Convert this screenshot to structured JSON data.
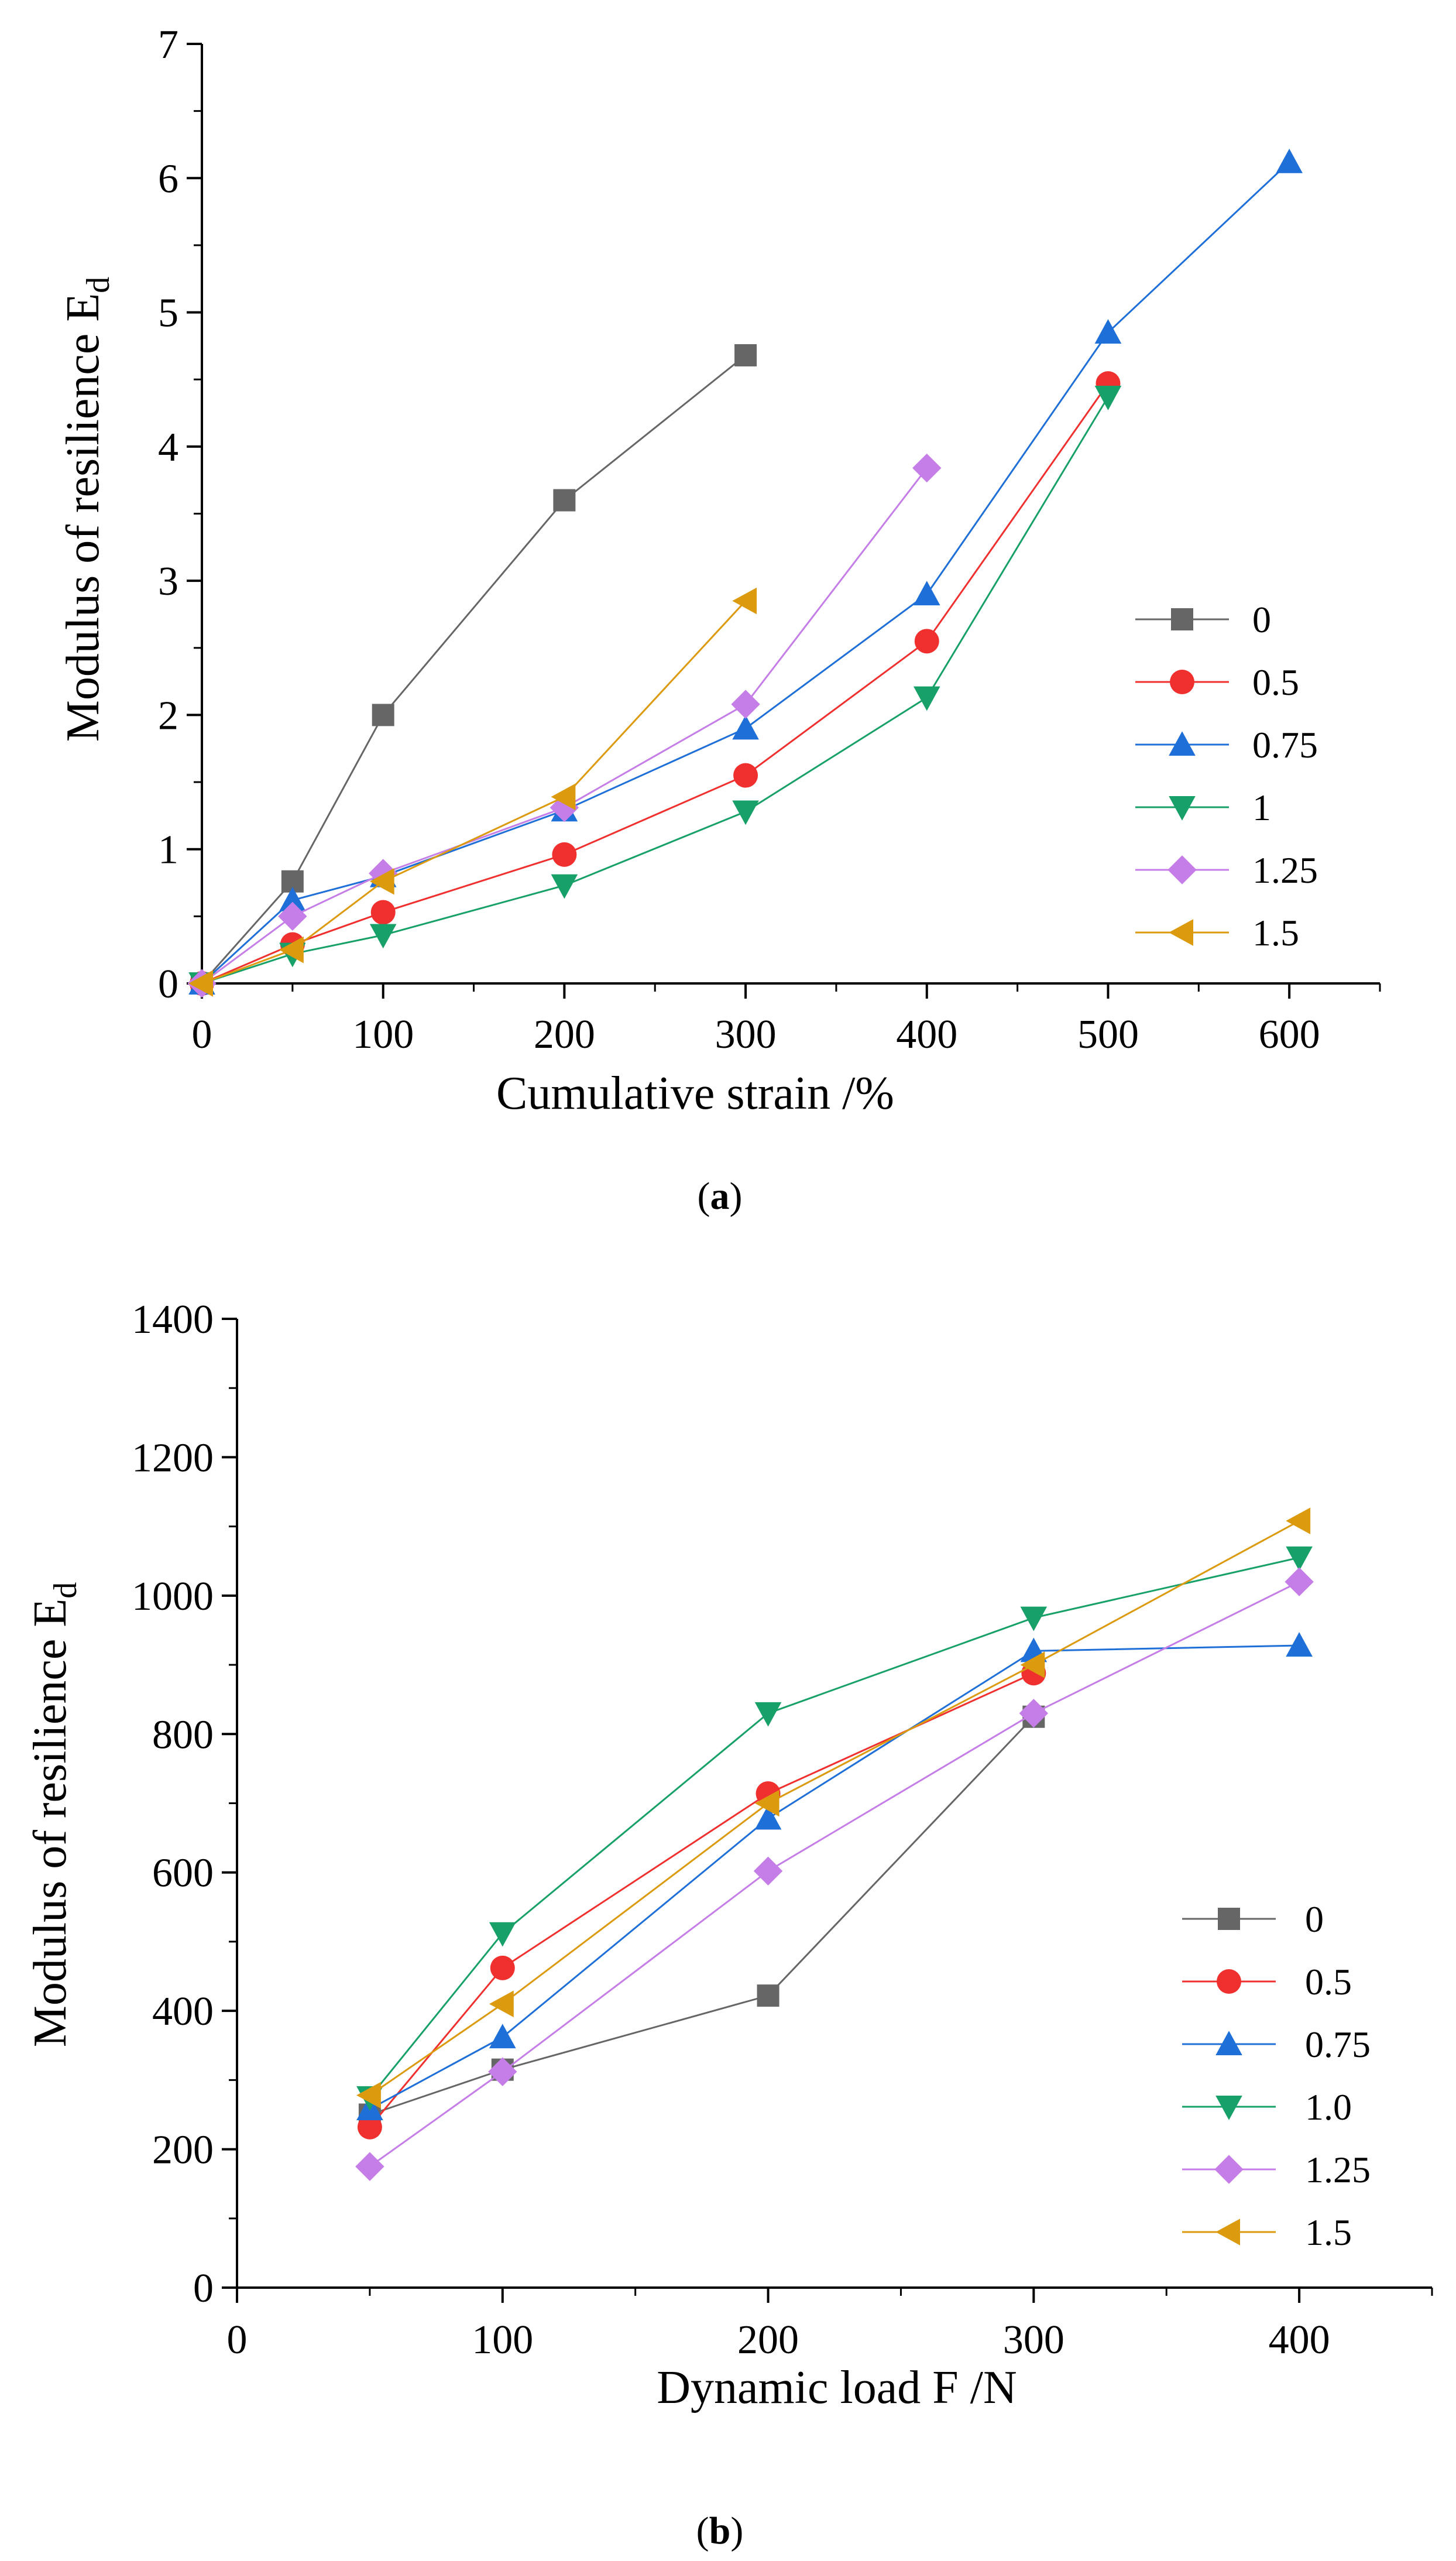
{
  "chart_data": [
    {
      "type": "line",
      "panel_label": "a",
      "title": "",
      "xlabel": "Cumulative strain /%",
      "ylabel_main": "Modulus of resilience E",
      "ylabel_sub": "d",
      "xlim": [
        0,
        650
      ],
      "ylim": [
        0,
        7
      ],
      "xticks": [
        0,
        100,
        200,
        300,
        400,
        500,
        600
      ],
      "yticks": [
        0,
        1,
        2,
        3,
        4,
        5,
        6,
        7
      ],
      "legend_position": "right",
      "series": [
        {
          "name": "0",
          "marker": "square",
          "color": "#666666",
          "x": [
            0,
            50,
            100,
            200,
            300
          ],
          "y": [
            0,
            0.76,
            2.0,
            3.6,
            4.68
          ]
        },
        {
          "name": "0.5",
          "marker": "circle",
          "color": "#f0302e",
          "x": [
            0,
            50,
            100,
            200,
            300,
            400,
            500
          ],
          "y": [
            0,
            0.29,
            0.53,
            0.96,
            1.55,
            2.55,
            4.47
          ]
        },
        {
          "name": "0.75",
          "marker": "triangle-up",
          "color": "#1f6fd8",
          "x": [
            0,
            50,
            100,
            200,
            300,
            400,
            500,
            600
          ],
          "y": [
            0,
            0.62,
            0.8,
            1.29,
            1.9,
            2.9,
            4.85,
            6.12
          ]
        },
        {
          "name": "1",
          "marker": "triangle-down",
          "color": "#17a168",
          "x": [
            0,
            50,
            100,
            200,
            300,
            400,
            500
          ],
          "y": [
            0,
            0.22,
            0.36,
            0.73,
            1.28,
            2.13,
            4.37
          ]
        },
        {
          "name": "1.25",
          "marker": "diamond",
          "color": "#c57ee8",
          "x": [
            0,
            50,
            100,
            200,
            300,
            400
          ],
          "y": [
            0,
            0.5,
            0.82,
            1.31,
            2.08,
            3.84
          ]
        },
        {
          "name": "1.5",
          "marker": "triangle-left",
          "color": "#dc9a0e",
          "x": [
            0,
            50,
            100,
            200,
            300
          ],
          "y": [
            0,
            0.25,
            0.76,
            1.39,
            2.85
          ]
        }
      ]
    },
    {
      "type": "line",
      "panel_label": "b",
      "title": "",
      "xlabel": "Dynamic load F /N",
      "ylabel_main": "Modulus of resilience E",
      "ylabel_sub": "d",
      "xlim": [
        0,
        450
      ],
      "ylim": [
        0,
        1400
      ],
      "xticks": [
        0,
        100,
        200,
        300,
        400
      ],
      "yticks": [
        0,
        200,
        400,
        600,
        800,
        1000,
        1200,
        1400
      ],
      "legend_position": "lower-right",
      "series": [
        {
          "name": "0",
          "marker": "square",
          "color": "#666666",
          "x": [
            50,
            100,
            200,
            300
          ],
          "y": [
            250,
            315,
            422,
            825
          ]
        },
        {
          "name": "0.5",
          "marker": "circle",
          "color": "#f0302e",
          "x": [
            50,
            100,
            200,
            300
          ],
          "y": [
            232,
            462,
            714,
            888
          ]
        },
        {
          "name": "0.75",
          "marker": "triangle-up",
          "color": "#1f6fd8",
          "x": [
            50,
            100,
            200,
            300,
            400
          ],
          "y": [
            258,
            362,
            678,
            920,
            928
          ]
        },
        {
          "name": "1.0",
          "marker": "triangle-down",
          "color": "#17a168",
          "x": [
            50,
            100,
            200,
            300,
            400
          ],
          "y": [
            275,
            512,
            830,
            968,
            1055
          ]
        },
        {
          "name": "1.25",
          "marker": "diamond",
          "color": "#c57ee8",
          "x": [
            50,
            100,
            200,
            300,
            400
          ],
          "y": [
            175,
            312,
            602,
            830,
            1020
          ]
        },
        {
          "name": "1.5",
          "marker": "triangle-left",
          "color": "#dc9a0e",
          "x": [
            50,
            100,
            200,
            300,
            400
          ],
          "y": [
            278,
            410,
            700,
            900,
            1108
          ]
        }
      ]
    }
  ]
}
